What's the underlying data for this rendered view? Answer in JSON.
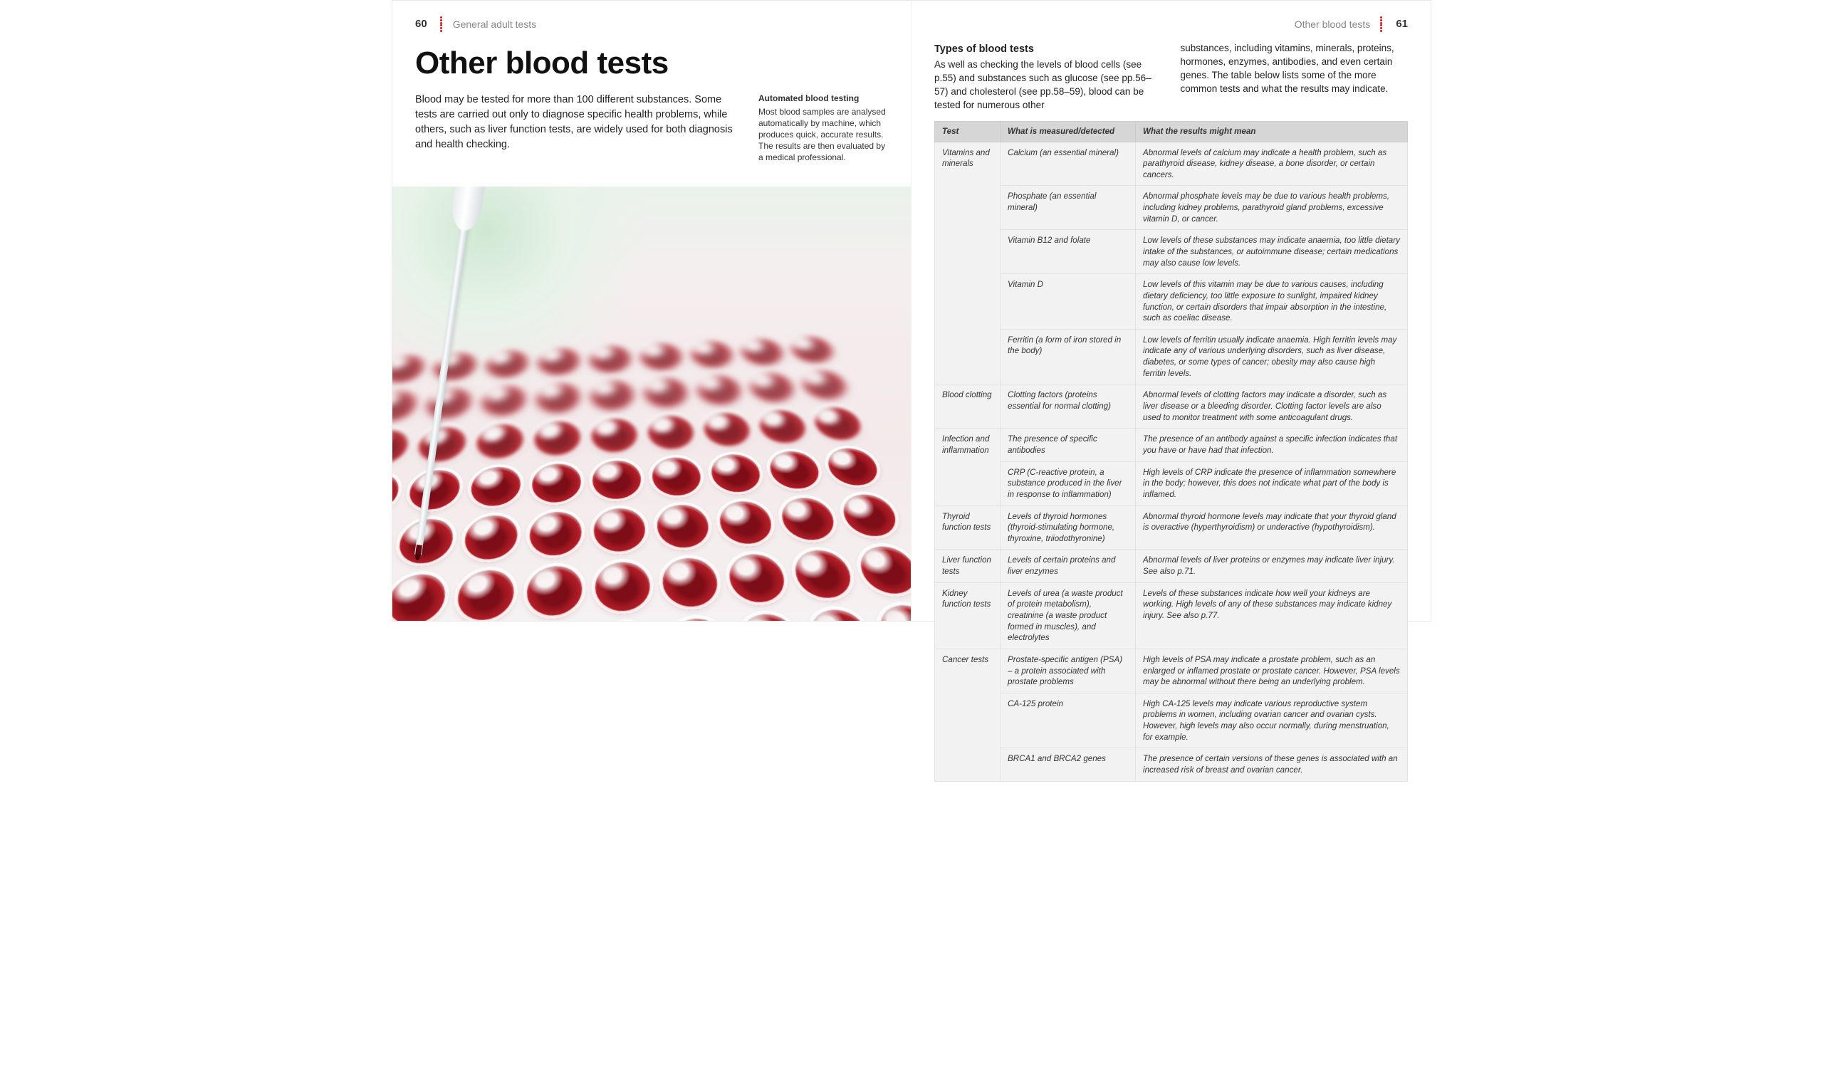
{
  "left": {
    "folio": "60",
    "section": "General adult tests",
    "title": "Other blood tests",
    "intro": "Blood may be tested for more than 100 different substances. Some tests are carried out only to diagnose specific health problems, while others, such as liver function tests, are widely used for both diagnosis and health checking.",
    "caption_head": "Automated blood testing",
    "caption_body": "Most blood samples are analysed automatically by machine, which produces quick, accurate results. The results are then evaluated by a medical professional."
  },
  "right": {
    "folio": "61",
    "section": "Other blood tests",
    "types_head": "Types of blood tests",
    "types_col1": "As well as checking the levels of blood cells (see p.55) and substances such as glucose (see pp.56–57) and cholesterol (see pp.58–59), blood can be tested for numerous other",
    "types_col2": "substances, including vitamins, minerals, proteins, hormones, enzymes, antibodies, and even certain genes. The table below lists some of the more common tests and what the results may indicate."
  },
  "table": {
    "headers": [
      "Test",
      "What is measured/detected",
      "What the results might mean"
    ],
    "groups": [
      {
        "category": "Vitamins and minerals",
        "rows": [
          {
            "measure": "Calcium (an essential mineral)",
            "meaning": "Abnormal levels of calcium may indicate a health problem, such as parathyroid disease, kidney disease, a bone disorder, or certain cancers."
          },
          {
            "measure": "Phosphate (an essential mineral)",
            "meaning": "Abnormal phosphate levels may be due to various health problems, including kidney problems, parathyroid gland problems, excessive vitamin D, or cancer."
          },
          {
            "measure": "Vitamin B12 and folate",
            "meaning": "Low levels of these substances may indicate anaemia, too little dietary intake of the substances, or autoimmune disease; certain medications may also cause low levels."
          },
          {
            "measure": "Vitamin D",
            "meaning": "Low levels of this vitamin may be due to various causes, including dietary deficiency, too little exposure to sunlight, impaired kidney function, or certain disorders that impair absorption in the intestine, such as coeliac disease."
          },
          {
            "measure": "Ferritin (a form of iron stored in the body)",
            "meaning": "Low levels of ferritin usually indicate anaemia. High ferritin levels may indicate any of various underlying disorders, such as liver disease, diabetes, or some types of cancer; obesity may also cause high ferritin levels."
          }
        ]
      },
      {
        "category": "Blood clotting",
        "rows": [
          {
            "measure": "Clotting factors (proteins essential for normal clotting)",
            "meaning": "Abnormal levels of clotting factors may indicate a disorder, such as liver disease or a bleeding disorder. Clotting factor levels are also used to monitor treatment with some anticoagulant drugs."
          }
        ]
      },
      {
        "category": "Infection and inflammation",
        "rows": [
          {
            "measure": "The presence of specific antibodies",
            "meaning": "The presence of an antibody against a specific infection indicates that you have or have had that infection."
          },
          {
            "measure": "CRP (C-reactive protein, a substance produced in the liver in response to inflammation)",
            "meaning": "High levels of CRP indicate the presence of inflammation somewhere in the body; however, this does not indicate what part of the body is inflamed."
          }
        ]
      },
      {
        "category": "Thyroid function tests",
        "rows": [
          {
            "measure": "Levels of thyroid hormones (thyroid-stimulating hormone, thyroxine, triiodothyronine)",
            "meaning": "Abnormal thyroid hormone levels may indicate that your thyroid gland is overactive (hyperthyroidism) or underactive (hypothyroidism)."
          }
        ]
      },
      {
        "category": "Liver function tests",
        "rows": [
          {
            "measure": "Levels of certain proteins and liver enzymes",
            "meaning": "Abnormal levels of liver proteins or enzymes may indicate liver injury. See also p.71."
          }
        ]
      },
      {
        "category": "Kidney function tests",
        "rows": [
          {
            "measure": "Levels of urea (a waste product of protein metabolism), creatinine (a waste product formed in muscles), and electrolytes",
            "meaning": "Levels of these substances indicate how well your kidneys are working. High levels of any of these substances may indicate kidney injury. See also p.77."
          }
        ]
      },
      {
        "category": "Cancer tests",
        "rows": [
          {
            "measure": "Prostate-specific antigen (PSA) – a protein associated with prostate problems",
            "meaning": "High levels of PSA may indicate a prostate problem, such as an enlarged or inflamed prostate or prostate cancer. However, PSA levels may be abnormal without there being an underlying problem."
          },
          {
            "measure": "CA-125 protein",
            "meaning": "High CA-125 levels may indicate various reproductive system problems in women, including ovarian cancer and ovarian cysts. However, high levels may also occur normally, during menstruation, for example."
          },
          {
            "measure": "BRCA1 and BRCA2 genes",
            "meaning": "The presence of certain versions of these genes is associated with an increased risk of breast and ovarian cancer."
          }
        ]
      }
    ]
  },
  "style": {
    "accent": "#d11",
    "table_header_bg": "#d6d6d6",
    "table_cell_bg": "#f2f2f2",
    "well_red": "#9a1620"
  }
}
